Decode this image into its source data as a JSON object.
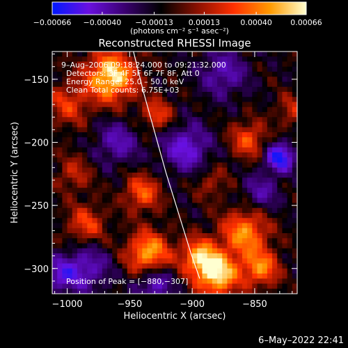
{
  "chart_data": {
    "type": "heatmap",
    "title": "Reconstructed RHESSI Image",
    "xlabel": "Heliocentric X (arcsec)",
    "ylabel": "Heliocentric Y (arcsec)",
    "xlim": [
      -1012,
      -816
    ],
    "ylim": [
      -320,
      -128
    ],
    "x_ticks": [
      -1000,
      -950,
      -900,
      -850
    ],
    "y_ticks": [
      -300,
      -250,
      -200,
      -150
    ],
    "x_tick_labels": [
      "−1000",
      "−950",
      "−900",
      "−850"
    ],
    "y_tick_labels": [
      "−300",
      "−250",
      "−200",
      "−150"
    ],
    "colorbar": {
      "range": [
        -0.00066,
        0.00066
      ],
      "ticks": [
        -0.00066,
        -0.0004,
        -0.00013,
        0.00013,
        0.0004,
        0.00066
      ],
      "tick_labels": [
        "−0.00066",
        "−0.00040",
        "−0.00013",
        "0.00013",
        "0.00040",
        "0.00066"
      ],
      "unit_label": "(photons cm⁻² s⁻¹ asec⁻²)",
      "colors": [
        "#0018ff",
        "#6a10e0",
        "#3a0070",
        "#000000",
        "#8a1000",
        "#ff3000",
        "#ff9a00",
        "#ffffd0"
      ]
    },
    "annotations": {
      "time_range": "9–Aug–2006 09:18:24.000 to 09:21:32.000",
      "detectors": "Detectors: 3F 4F 5F 6F 7F 8F, Att 0",
      "energy_range": "Energy Range: 25.0 – 50.0 keV",
      "clean": "Clean     Total counts: 6.75E+03",
      "peak": "Position of Peak = [−880,−307]"
    },
    "peak": {
      "x": -880,
      "y": -307
    },
    "hotspots": [
      {
        "x": -965,
        "y": -148,
        "strength": 1.0,
        "sigma": 14
      },
      {
        "x": -880,
        "y": -305,
        "strength": 1.0,
        "sigma": 12
      },
      {
        "x": -935,
        "y": -288,
        "strength": 0.85,
        "sigma": 12
      },
      {
        "x": -895,
        "y": -290,
        "strength": 0.75,
        "sigma": 10
      },
      {
        "x": -858,
        "y": -272,
        "strength": 0.75,
        "sigma": 13
      },
      {
        "x": -845,
        "y": -300,
        "strength": 0.7,
        "sigma": 10
      },
      {
        "x": -940,
        "y": -240,
        "strength": 0.6,
        "sigma": 10
      },
      {
        "x": -855,
        "y": -198,
        "strength": 0.55,
        "sigma": 10
      },
      {
        "x": -985,
        "y": -265,
        "strength": 0.5,
        "sigma": 11
      },
      {
        "x": -1000,
        "y": -170,
        "strength": 0.45,
        "sigma": 12
      },
      {
        "x": -928,
        "y": -178,
        "strength": 0.5,
        "sigma": 9
      },
      {
        "x": -995,
        "y": -225,
        "strength": 0.35,
        "sigma": 10
      },
      {
        "x": -885,
        "y": -232,
        "strength": 0.3,
        "sigma": 9
      },
      {
        "x": -820,
        "y": -175,
        "strength": 0.35,
        "sigma": 9
      }
    ],
    "coldspots": [
      {
        "x": -905,
        "y": -205,
        "strength": 0.6,
        "sigma": 13
      },
      {
        "x": -830,
        "y": -212,
        "strength": 0.9,
        "sigma": 8
      },
      {
        "x": -930,
        "y": -312,
        "strength": 0.55,
        "sigma": 10
      },
      {
        "x": -985,
        "y": -300,
        "strength": 0.5,
        "sigma": 13
      },
      {
        "x": -960,
        "y": -200,
        "strength": 0.45,
        "sigma": 12
      },
      {
        "x": -875,
        "y": -145,
        "strength": 0.45,
        "sigma": 13
      },
      {
        "x": -1005,
        "y": -305,
        "strength": 0.5,
        "sigma": 9
      },
      {
        "x": -845,
        "y": -240,
        "strength": 0.4,
        "sigma": 10
      }
    ],
    "limb_curve": [
      {
        "x": -947,
        "y": -128
      },
      {
        "x": -939,
        "y": -160
      },
      {
        "x": -930,
        "y": -192
      },
      {
        "x": -921,
        "y": -224
      },
      {
        "x": -911,
        "y": -256
      },
      {
        "x": -901,
        "y": -288
      },
      {
        "x": -894,
        "y": -308
      }
    ]
  },
  "footer": {
    "date_stamp": "6–May–2022 22:41"
  }
}
